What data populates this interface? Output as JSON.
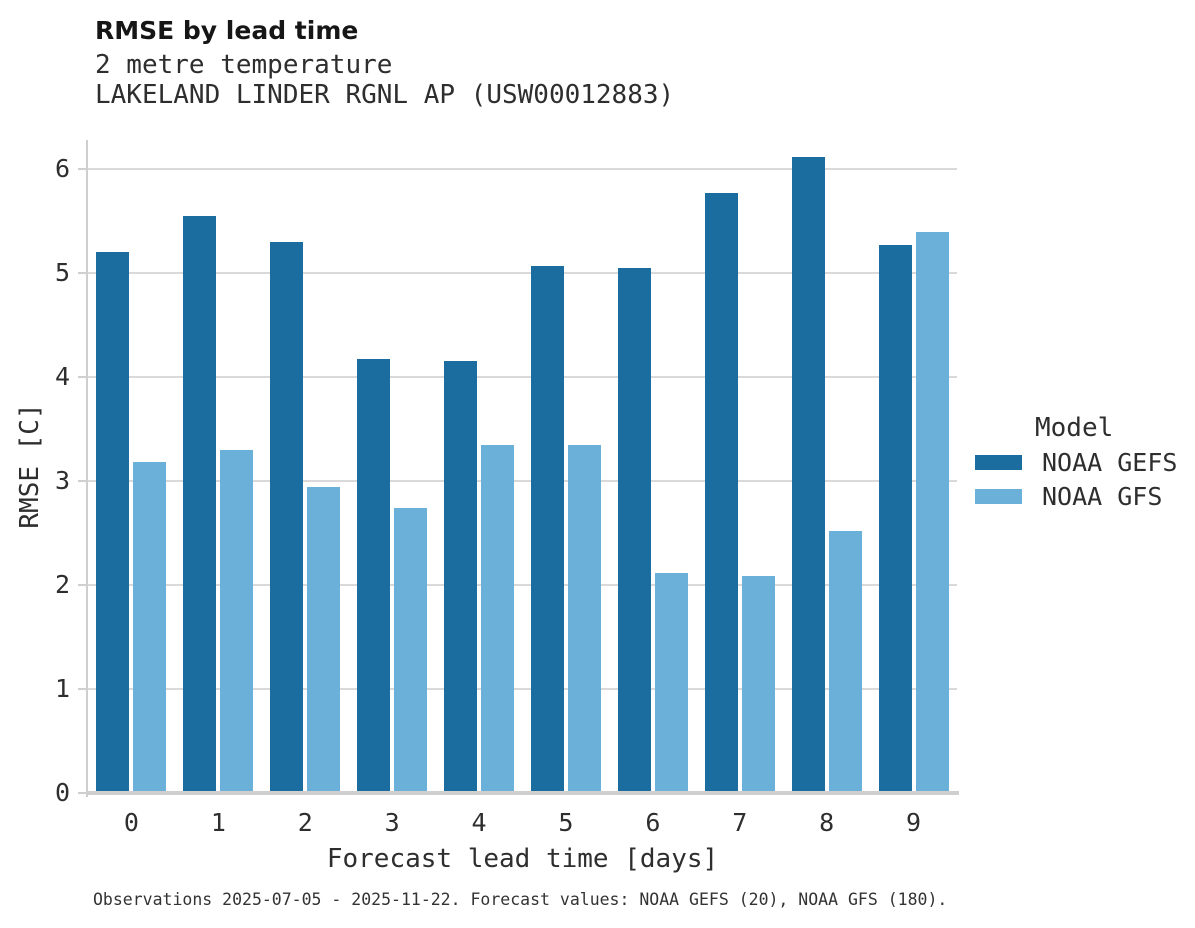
{
  "header": {
    "title": "RMSE by lead time",
    "subtitle_line1": "2 metre temperature",
    "subtitle_line2": "LAKELAND LINDER RGNL AP (USW00012883)"
  },
  "chart_data": {
    "type": "bar",
    "title": "RMSE by lead time",
    "subtitle": [
      "2 metre temperature",
      "LAKELAND LINDER RGNL AP (USW00012883)"
    ],
    "categories": [
      "0",
      "1",
      "2",
      "3",
      "4",
      "5",
      "6",
      "7",
      "8",
      "9"
    ],
    "series": [
      {
        "name": "NOAA GEFS",
        "color": "#1a6d9e",
        "values": [
          5.2,
          5.55,
          5.3,
          4.17,
          4.15,
          5.07,
          5.05,
          5.77,
          6.12,
          5.27
        ]
      },
      {
        "name": "NOAA GFS",
        "color": "#6bb0d8",
        "values": [
          3.18,
          3.3,
          2.94,
          2.74,
          3.35,
          3.35,
          2.12,
          2.09,
          2.52,
          5.4
        ]
      }
    ],
    "xlabel": "Forecast lead time [days]",
    "ylabel": "RMSE [C]",
    "ylim": [
      0,
      6.28
    ],
    "yticks": [
      0,
      1,
      2,
      3,
      4,
      5,
      6
    ],
    "grid": "horizontal",
    "legend_title": "Model",
    "legend_position": "right"
  },
  "legend": {
    "title": "Model",
    "items": [
      {
        "label": "NOAA GEFS",
        "color": "#1a6d9e"
      },
      {
        "label": "NOAA GFS",
        "color": "#6bb0d8"
      }
    ]
  },
  "footer": {
    "note": "Observations 2025-07-05 - 2025-11-22. Forecast values: NOAA GEFS (20), NOAA GFS (180)."
  },
  "colors": {
    "gefs_bar": "#1a6d9e",
    "gfs_bar": "#6bb0d8",
    "gridline": "#d9d9d9",
    "axis": "#cfcfcf",
    "text": "#2e2e2e"
  }
}
